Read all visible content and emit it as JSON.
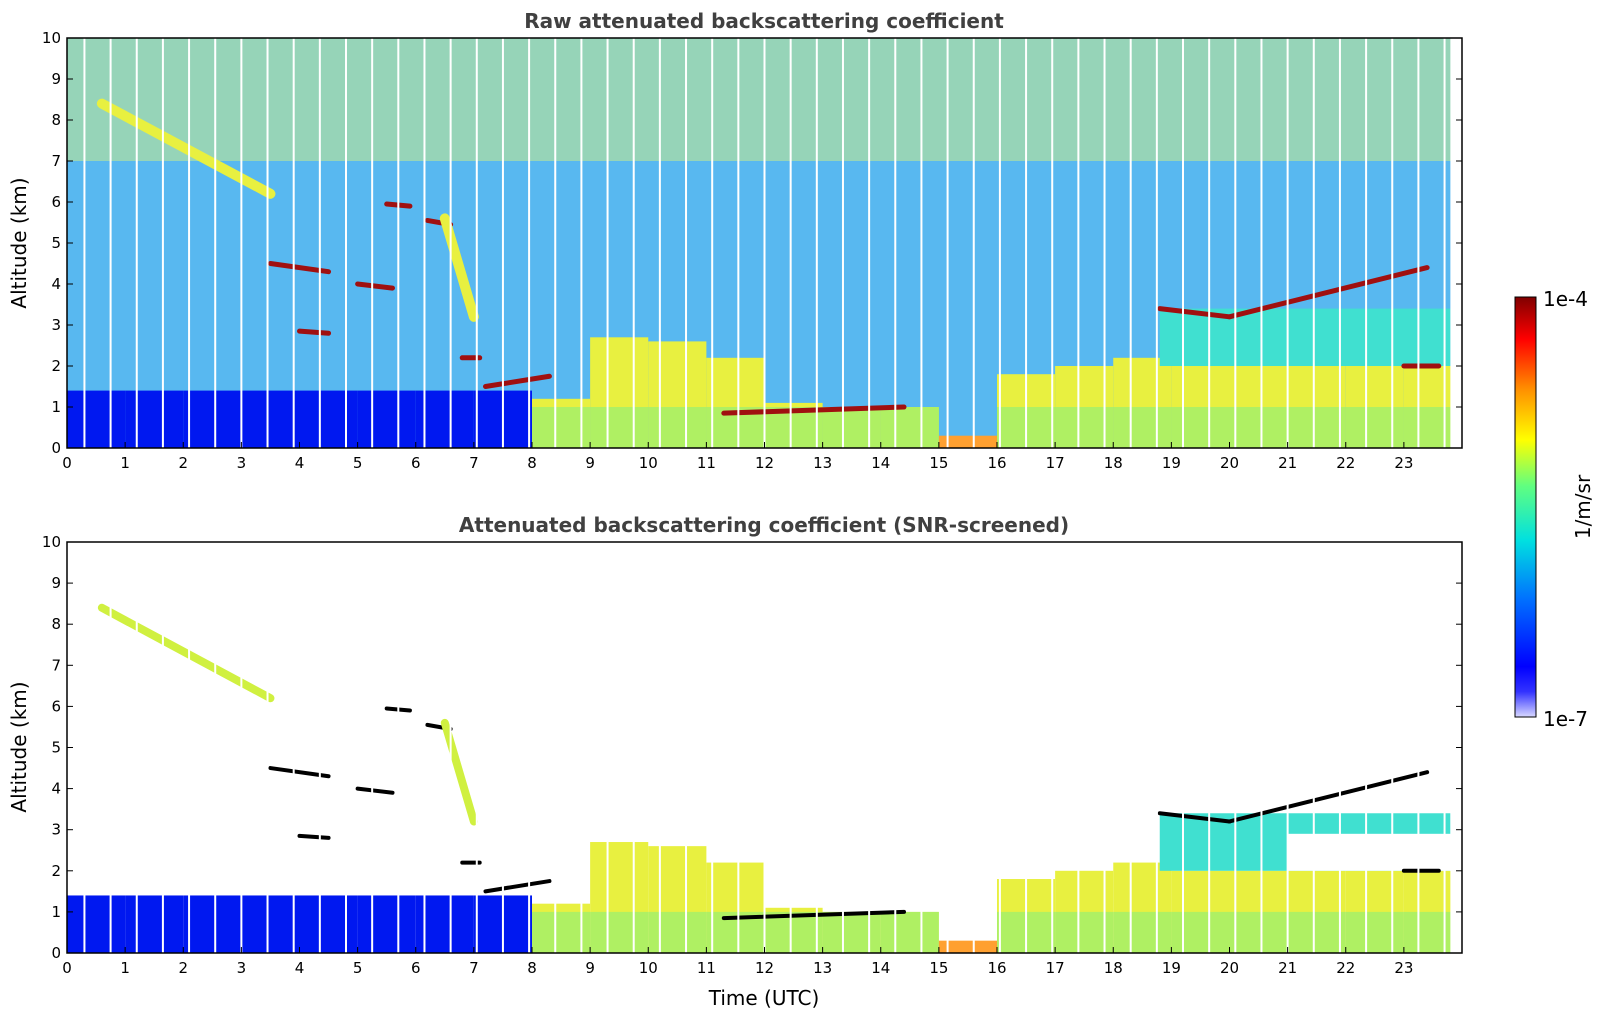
{
  "chart_data": [
    {
      "type": "heatmap",
      "title": "Raw attenuated backscattering coefficient",
      "xlabel": "",
      "ylabel": "Altitude (km)",
      "xlim": [
        0,
        24
      ],
      "ylim": [
        0,
        10
      ],
      "x_ticks": [
        0,
        1,
        2,
        3,
        4,
        5,
        6,
        7,
        8,
        9,
        10,
        11,
        12,
        13,
        14,
        15,
        16,
        17,
        18,
        19,
        20,
        21,
        22,
        23
      ],
      "y_ticks": [
        0,
        1,
        2,
        3,
        4,
        5,
        6,
        7,
        8,
        9,
        10
      ],
      "boundary_layer_top_km": [
        1.4,
        1.4,
        1.4,
        1.4,
        1.4,
        1.4,
        1.4,
        1.4,
        1.2,
        2.7,
        2.6,
        2.2,
        1.1,
        1.0,
        1.0,
        0.3,
        1.8,
        2.0,
        2.2,
        2.0,
        2.0,
        2.0,
        2.0,
        2.0
      ],
      "cloud_layers": [
        {
          "x0": 0.6,
          "x1": 3.5,
          "y0": 8.4,
          "y1": 6.2,
          "level": "yellow"
        },
        {
          "x0": 3.5,
          "x1": 4.5,
          "y0": 4.5,
          "y1": 4.3,
          "level": "dark-red"
        },
        {
          "x0": 5.0,
          "x1": 5.6,
          "y0": 4.0,
          "y1": 3.9,
          "level": "dark-red"
        },
        {
          "x0": 5.5,
          "x1": 5.9,
          "y0": 5.95,
          "y1": 5.9,
          "level": "dark-red"
        },
        {
          "x0": 6.2,
          "x1": 6.6,
          "y0": 5.55,
          "y1": 5.45,
          "level": "dark-red"
        },
        {
          "x0": 6.5,
          "x1": 7.0,
          "y0": 5.6,
          "y1": 3.2,
          "level": "yellow"
        },
        {
          "x0": 4.0,
          "x1": 4.5,
          "y0": 2.85,
          "y1": 2.8,
          "level": "dark-red"
        },
        {
          "x0": 6.8,
          "x1": 7.1,
          "y0": 2.2,
          "y1": 2.2,
          "level": "dark-red"
        },
        {
          "x0": 7.2,
          "x1": 8.3,
          "y0": 1.5,
          "y1": 1.75,
          "level": "dark-red"
        },
        {
          "x0": 11.3,
          "x1": 14.4,
          "y0": 0.85,
          "y1": 1.0,
          "level": "dark-red"
        },
        {
          "x0": 18.8,
          "x1": 20.0,
          "y0": 3.4,
          "y1": 3.2,
          "level": "dark-red"
        },
        {
          "x0": 20.0,
          "x1": 23.4,
          "y0": 3.2,
          "y1": 4.4,
          "level": "dark-red"
        },
        {
          "x0": 23.0,
          "x1": 23.6,
          "y0": 2.0,
          "y1": 2.0,
          "level": "dark-red"
        }
      ]
    },
    {
      "type": "heatmap",
      "title": "Attenuated backscattering coefficient (SNR-screened)",
      "xlabel": "Time (UTC)",
      "ylabel": "Altitude (km)",
      "xlim": [
        0,
        24
      ],
      "ylim": [
        0,
        10
      ],
      "x_ticks": [
        0,
        1,
        2,
        3,
        4,
        5,
        6,
        7,
        8,
        9,
        10,
        11,
        12,
        13,
        14,
        15,
        16,
        17,
        18,
        19,
        20,
        21,
        22,
        23
      ],
      "y_ticks": [
        0,
        1,
        2,
        3,
        4,
        5,
        6,
        7,
        8,
        9,
        10
      ],
      "boundary_layer_top_km": [
        1.4,
        1.4,
        1.4,
        1.4,
        1.4,
        1.4,
        1.4,
        1.4,
        1.2,
        2.7,
        2.6,
        2.2,
        1.1,
        1.0,
        1.0,
        0.3,
        1.8,
        2.0,
        2.2,
        2.0,
        2.0,
        2.0,
        2.0,
        2.0
      ],
      "screened_out_regions": [
        {
          "x0": 0.0,
          "x1": 7.0,
          "y0": 1.5,
          "y1": 10.0
        },
        {
          "x0": 7.0,
          "x1": 24.0,
          "y0": 4.6,
          "y1": 10.0
        },
        {
          "x0": 21.0,
          "x1": 24.0,
          "y0": 2.0,
          "y1": 2.9
        }
      ]
    }
  ],
  "colorbar": {
    "label": "1/m/sr",
    "max_label": "1e-4",
    "min_label": "1e-7",
    "scale": "log",
    "range": [
      1e-07,
      0.0001
    ],
    "colormap": [
      "#d8d8ff",
      "#0000ff",
      "#0080ff",
      "#00e0e0",
      "#60ff60",
      "#ffff00",
      "#ff9000",
      "#ff0000",
      "#800000"
    ]
  }
}
